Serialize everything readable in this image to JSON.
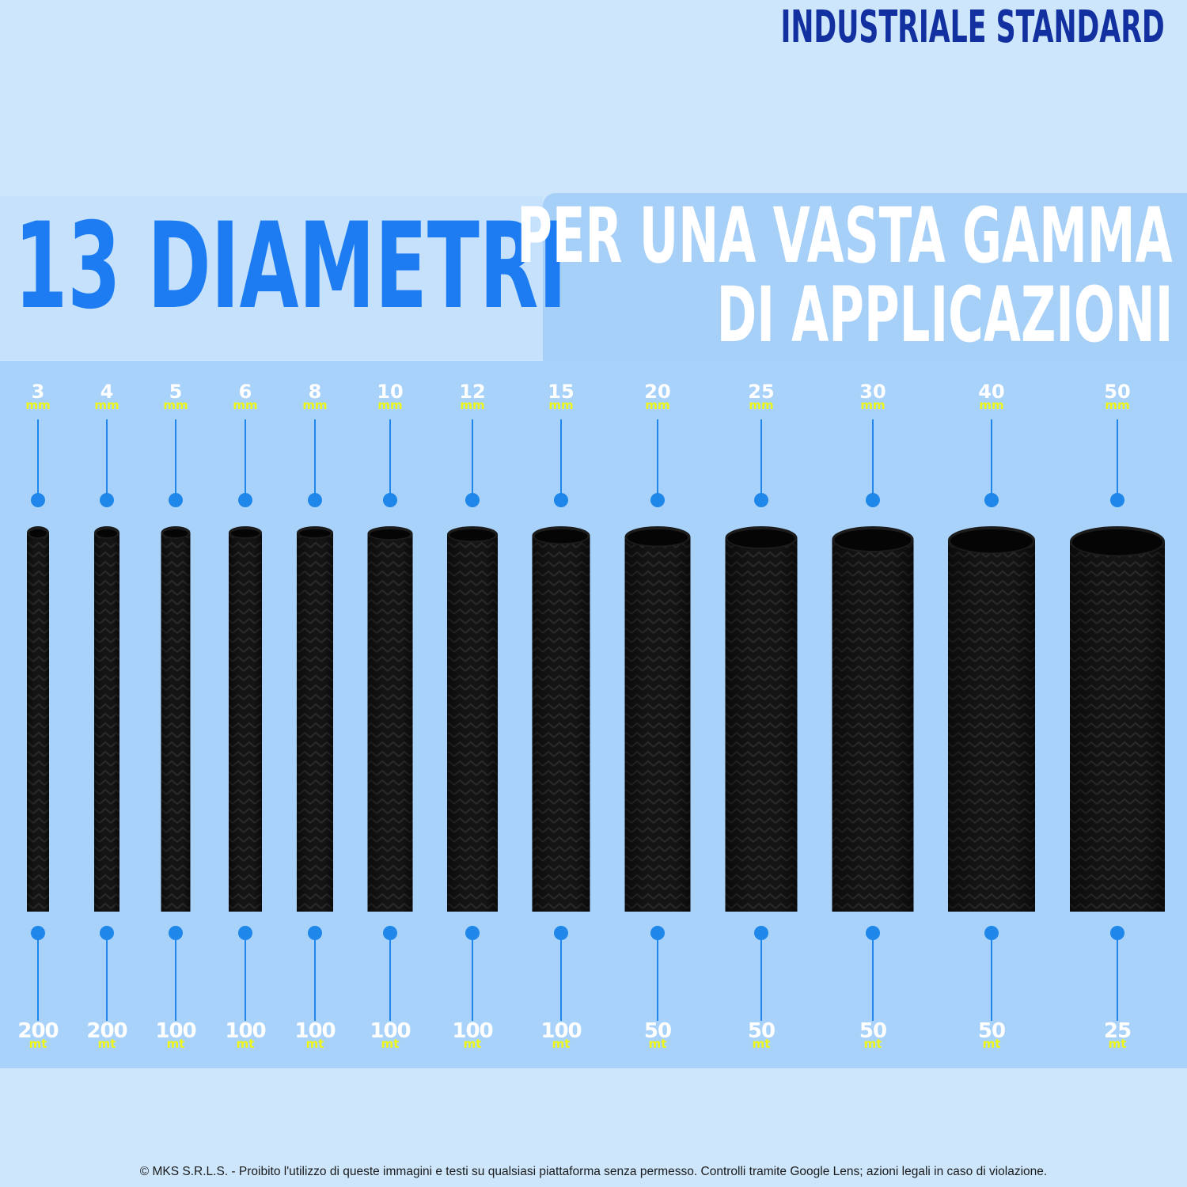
{
  "header": {
    "title": "INDUSTRIALE STANDARD"
  },
  "headline": {
    "main": "13 DIAMETRI",
    "sub_line1": "PER UNA VASTA GAMMA",
    "sub_line2": "DI APPLICAZIONI"
  },
  "colors": {
    "headline": "#1d7cf2",
    "header": "#1330a0",
    "unit_text": "#eef51a",
    "dot": "#1f86ea",
    "hose": "#141414"
  },
  "hoses": [
    {
      "diameter": "3",
      "diameter_unit": "mm",
      "length": "200",
      "length_unit": "mt"
    },
    {
      "diameter": "4",
      "diameter_unit": "mm",
      "length": "200",
      "length_unit": "mt"
    },
    {
      "diameter": "5",
      "diameter_unit": "mm",
      "length": "100",
      "length_unit": "mt"
    },
    {
      "diameter": "6",
      "diameter_unit": "mm",
      "length": "100",
      "length_unit": "mt"
    },
    {
      "diameter": "8",
      "diameter_unit": "mm",
      "length": "100",
      "length_unit": "mt"
    },
    {
      "diameter": "10",
      "diameter_unit": "mm",
      "length": "100",
      "length_unit": "mt"
    },
    {
      "diameter": "12",
      "diameter_unit": "mm",
      "length": "100",
      "length_unit": "mt"
    },
    {
      "diameter": "15",
      "diameter_unit": "mm",
      "length": "100",
      "length_unit": "mt"
    },
    {
      "diameter": "20",
      "diameter_unit": "mm",
      "length": "50",
      "length_unit": "mt"
    },
    {
      "diameter": "25",
      "diameter_unit": "mm",
      "length": "50",
      "length_unit": "mt"
    },
    {
      "diameter": "30",
      "diameter_unit": "mm",
      "length": "50",
      "length_unit": "mt"
    },
    {
      "diameter": "40",
      "diameter_unit": "mm",
      "length": "50",
      "length_unit": "mt"
    },
    {
      "diameter": "50",
      "diameter_unit": "mm",
      "length": "25",
      "length_unit": "mt"
    }
  ],
  "footer": {
    "text": "© MKS S.R.L.S. - Proibito l'utilizzo di queste immagini e testi su qualsiasi piattaforma senza permesso. Controlli tramite Google Lens; azioni legali in caso di violazione."
  }
}
